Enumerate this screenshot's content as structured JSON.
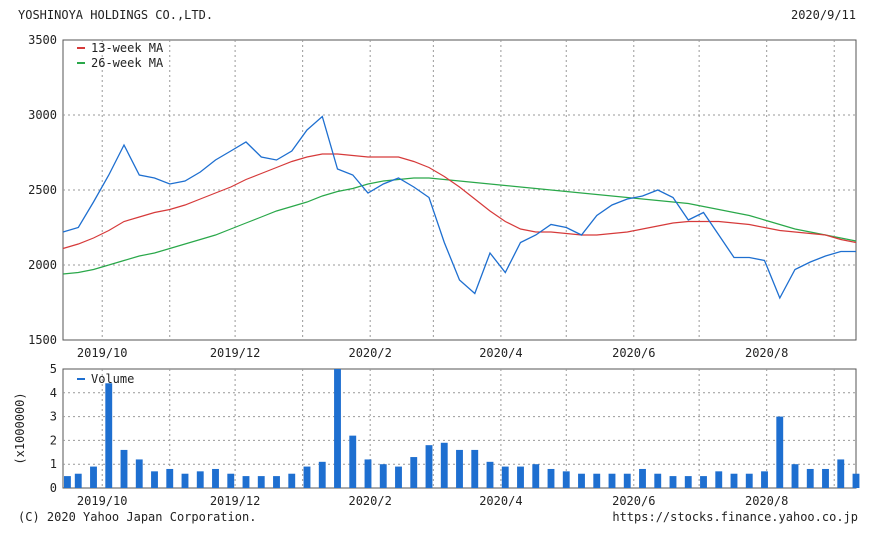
{
  "header": {
    "company": "YOSHINOYA HOLDINGS CO.,LTD.",
    "date": "2020/9/11"
  },
  "footer": {
    "copyright": "(C) 2020 Yahoo Japan Corporation.",
    "url": "https://stocks.finance.yahoo.co.jp"
  },
  "colors": {
    "price": "#1e6fd0",
    "ma13": "#d63a3a",
    "ma26": "#2aa84a",
    "volume": "#1e6fd0",
    "grid": "#999999",
    "frame": "#555555"
  },
  "chart_data": [
    {
      "type": "line",
      "title": "",
      "x": [
        "2019-09-13",
        "2019-09-20",
        "2019-09-27",
        "2019-10-04",
        "2019-10-11",
        "2019-10-18",
        "2019-10-25",
        "2019-11-01",
        "2019-11-08",
        "2019-11-15",
        "2019-11-22",
        "2019-11-29",
        "2019-12-06",
        "2019-12-13",
        "2019-12-20",
        "2019-12-27",
        "2020-01-03",
        "2020-01-10",
        "2020-01-17",
        "2020-01-24",
        "2020-01-31",
        "2020-02-07",
        "2020-02-14",
        "2020-02-21",
        "2020-02-28",
        "2020-03-06",
        "2020-03-13",
        "2020-03-20",
        "2020-03-27",
        "2020-04-03",
        "2020-04-10",
        "2020-04-17",
        "2020-04-24",
        "2020-05-01",
        "2020-05-08",
        "2020-05-15",
        "2020-05-22",
        "2020-05-29",
        "2020-06-05",
        "2020-06-12",
        "2020-06-19",
        "2020-06-26",
        "2020-07-03",
        "2020-07-10",
        "2020-07-17",
        "2020-07-24",
        "2020-07-31",
        "2020-08-07",
        "2020-08-14",
        "2020-08-21",
        "2020-08-28",
        "2020-09-04",
        "2020-09-11"
      ],
      "x_tick_labels": [
        "2019/10",
        "2019/12",
        "2020/2",
        "2020/4",
        "2020/6",
        "2020/8"
      ],
      "ylim": [
        1500,
        3500
      ],
      "y_ticks": [
        1500,
        2000,
        2500,
        3000,
        3500
      ],
      "grid": true,
      "legend_position": "top-left",
      "series": [
        {
          "name": "",
          "role": "price",
          "values": [
            2220,
            2250,
            2420,
            2600,
            2800,
            2600,
            2580,
            2540,
            2560,
            2620,
            2700,
            2760,
            2820,
            2720,
            2700,
            2760,
            2900,
            2990,
            2640,
            2600,
            2480,
            2540,
            2580,
            2520,
            2450,
            2150,
            1900,
            1810,
            2080,
            1950,
            2150,
            2200,
            2270,
            2250,
            2200,
            2330,
            2400,
            2440,
            2460,
            2500,
            2450,
            2300,
            2350,
            2200,
            2050,
            2050,
            2030,
            1780,
            1970,
            2020,
            2060,
            2090,
            2090
          ]
        },
        {
          "name": "13-week MA",
          "role": "ma13",
          "values": [
            2110,
            2140,
            2180,
            2230,
            2290,
            2320,
            2350,
            2370,
            2400,
            2440,
            2480,
            2520,
            2570,
            2610,
            2650,
            2690,
            2720,
            2740,
            2740,
            2730,
            2720,
            2720,
            2720,
            2690,
            2650,
            2590,
            2520,
            2440,
            2360,
            2290,
            2240,
            2220,
            2220,
            2210,
            2200,
            2200,
            2210,
            2220,
            2240,
            2260,
            2280,
            2290,
            2290,
            2290,
            2280,
            2270,
            2250,
            2230,
            2220,
            2210,
            2200,
            2170,
            2150
          ]
        },
        {
          "name": "26-week MA",
          "role": "ma26",
          "values": [
            1940,
            1950,
            1970,
            2000,
            2030,
            2060,
            2080,
            2110,
            2140,
            2170,
            2200,
            2240,
            2280,
            2320,
            2360,
            2390,
            2420,
            2460,
            2490,
            2510,
            2540,
            2560,
            2570,
            2580,
            2580,
            2570,
            2560,
            2550,
            2540,
            2530,
            2520,
            2510,
            2500,
            2490,
            2480,
            2470,
            2460,
            2450,
            2440,
            2430,
            2420,
            2410,
            2390,
            2370,
            2350,
            2330,
            2300,
            2270,
            2240,
            2220,
            2200,
            2180,
            2160
          ]
        }
      ]
    },
    {
      "type": "bar",
      "title": "",
      "ylabel": "(x1000000)",
      "ylim": [
        0,
        5
      ],
      "y_ticks": [
        0,
        1,
        2,
        3,
        4,
        5
      ],
      "grid": true,
      "legend_position": "top-left",
      "series": [
        {
          "name": "Volume",
          "values": [
            0.5,
            0.6,
            0.9,
            4.4,
            1.6,
            1.2,
            0.7,
            0.8,
            0.6,
            0.7,
            0.8,
            0.6,
            0.5,
            0.5,
            0.5,
            0.6,
            0.9,
            1.1,
            5.0,
            2.2,
            1.2,
            1.0,
            0.9,
            1.3,
            1.8,
            1.9,
            1.6,
            1.6,
            1.1,
            0.9,
            0.9,
            1.0,
            0.8,
            0.7,
            0.6,
            0.6,
            0.6,
            0.6,
            0.8,
            0.6,
            0.5,
            0.5,
            0.5,
            0.7,
            0.6,
            0.6,
            0.7,
            3.0,
            1.0,
            0.8,
            0.8,
            1.2,
            0.6
          ]
        }
      ]
    }
  ]
}
